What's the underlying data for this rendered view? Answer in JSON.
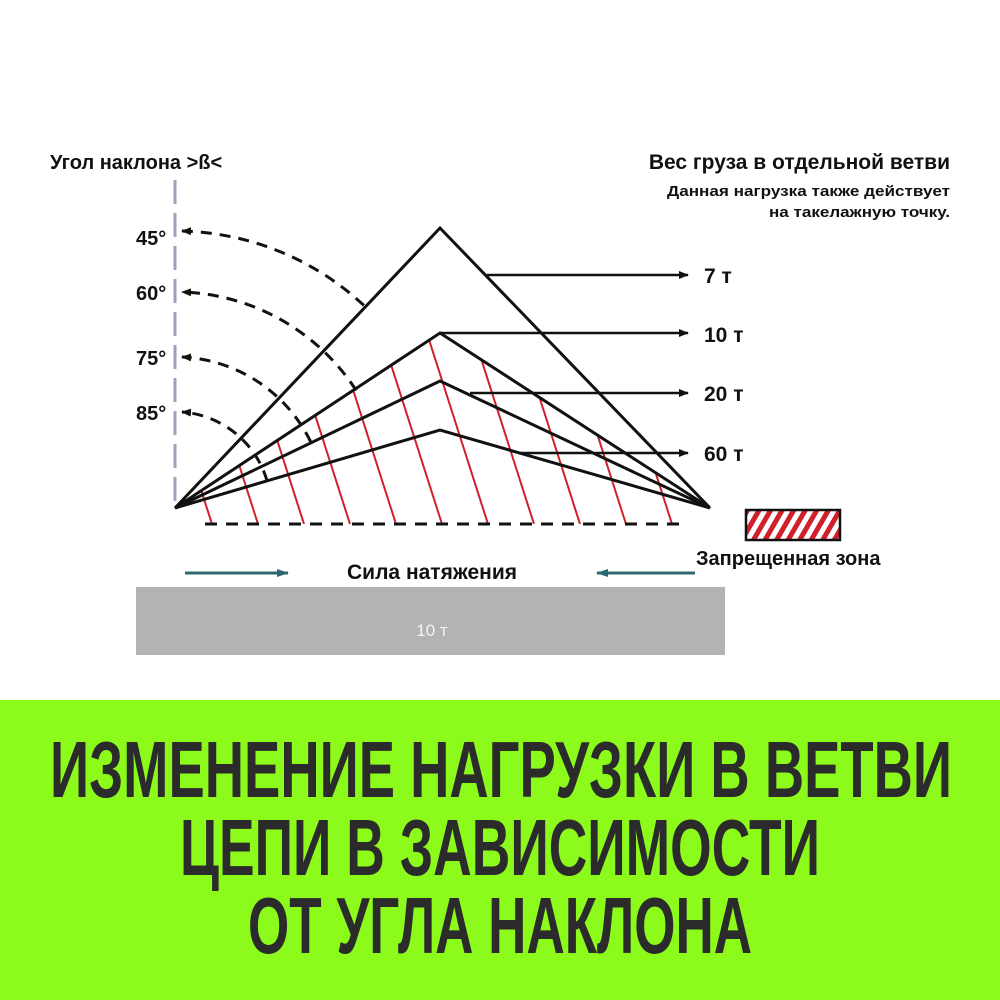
{
  "left_header": "Угол наклона >ß<",
  "right_header": {
    "title": "Вес груза в отдельной ветви",
    "note_line1": "Данная нагрузка также действует",
    "note_line2": "на такелажную точку."
  },
  "angles": [
    "45°",
    "60°",
    "75°",
    "85°"
  ],
  "loads": [
    "7 т",
    "10 т",
    "20 т",
    "60 т"
  ],
  "tension_label": "Сила натяжения",
  "load_block_label": "10 т",
  "legend_label": "Запрещенная зона",
  "colors": {
    "hatch": "#d0202a",
    "arrow": "#2d6870",
    "axis": "#a59cc4",
    "block": "#b3b3b3",
    "band": "#8cfb1c",
    "title": "#2b2b2b"
  },
  "banner": {
    "line1": "ИЗМЕНЕНИЕ НАГРУЗКИ В ВЕТВИ",
    "line2": "ЦЕПИ В ЗАВИСИМОСТИ",
    "line3": "ОТ УГЛА НАКЛОНА"
  }
}
